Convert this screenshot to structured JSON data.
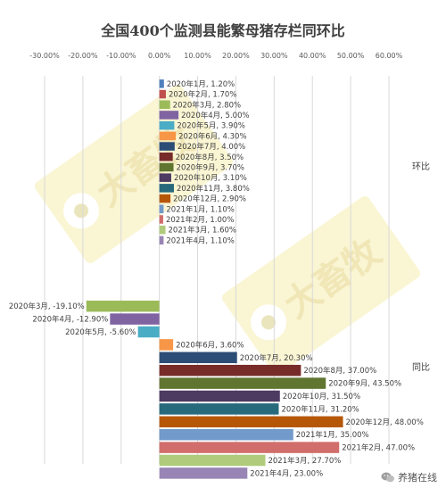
{
  "chart_data": {
    "type": "bar",
    "orientation": "horizontal",
    "title": "全国400个监测县能繁母猪存栏同环比",
    "xlim": [
      -0.3,
      0.6
    ],
    "xticks": [
      "-30.00%",
      "-20.00%",
      "-10.00%",
      "0.00%",
      "10.00%",
      "20.00%",
      "30.00%",
      "40.00%",
      "50.00%",
      "60.00%"
    ],
    "xtick_values": [
      -0.3,
      -0.2,
      -0.1,
      0,
      0.1,
      0.2,
      0.3,
      0.4,
      0.5,
      0.6
    ],
    "grid": true,
    "legend": "none",
    "groups": [
      {
        "name": "环比",
        "bars": [
          {
            "category": "2020年1月",
            "value": 0.012,
            "label": "2020年1月, 1.20%",
            "color": "#4f81bd"
          },
          {
            "category": "2020年2月",
            "value": 0.017,
            "label": "2020年2月, 1.70%",
            "color": "#c0504d"
          },
          {
            "category": "2020年3月",
            "value": 0.028,
            "label": "2020年3月, 2.80%",
            "color": "#9bbb59"
          },
          {
            "category": "2020年4月",
            "value": 0.05,
            "label": "2020年4月, 5.00%",
            "color": "#8064a2"
          },
          {
            "category": "2020年5月",
            "value": 0.039,
            "label": "2020年5月, 3.90%",
            "color": "#4bacc6"
          },
          {
            "category": "2020年6月",
            "value": 0.043,
            "label": "2020年6月, 4.30%",
            "color": "#f79646"
          },
          {
            "category": "2020年7月",
            "value": 0.04,
            "label": "2020年7月, 4.00%",
            "color": "#2c4d75"
          },
          {
            "category": "2020年8月",
            "value": 0.035,
            "label": "2020年8月, 3.50%",
            "color": "#772c2a"
          },
          {
            "category": "2020年9月",
            "value": 0.037,
            "label": "2020年9月, 3.70%",
            "color": "#5f7530"
          },
          {
            "category": "2020年10月",
            "value": 0.031,
            "label": "2020年10月, 3.10%",
            "color": "#4d3b62"
          },
          {
            "category": "2020年11月",
            "value": 0.038,
            "label": "2020年11月, 3.80%",
            "color": "#276a7c"
          },
          {
            "category": "2020年12月",
            "value": 0.029,
            "label": "2020年12月, 2.90%",
            "color": "#b65708"
          },
          {
            "category": "2021年1月",
            "value": 0.011,
            "label": "2021年1月, 1.10%",
            "color": "#729aca"
          },
          {
            "category": "2021年2月",
            "value": 0.01,
            "label": "2021年2月, 1.00%",
            "color": "#d16e6b"
          },
          {
            "category": "2021年3月",
            "value": 0.016,
            "label": "2021年3月, 1.60%",
            "color": "#afcb7b"
          },
          {
            "category": "2021年4月",
            "value": 0.011,
            "label": "2021年4月, 1.10%",
            "color": "#9985b5"
          }
        ]
      },
      {
        "name": "同比",
        "bars": [
          {
            "category": "2020年3月",
            "value": -0.191,
            "label": "2020年3月, -19.10%",
            "color": "#9bbb59"
          },
          {
            "category": "2020年4月",
            "value": -0.129,
            "label": "2020年4月, -12.90%",
            "color": "#8064a2"
          },
          {
            "category": "2020年5月",
            "value": -0.056,
            "label": "2020年5月, -5.60%",
            "color": "#4bacc6"
          },
          {
            "category": "2020年6月",
            "value": 0.036,
            "label": "2020年6月, 3.60%",
            "color": "#f79646"
          },
          {
            "category": "2020年7月",
            "value": 0.203,
            "label": "2020年7月, 20.30%",
            "color": "#2c4d75"
          },
          {
            "category": "2020年8月",
            "value": 0.37,
            "label": "2020年8月, 37.00%",
            "color": "#772c2a"
          },
          {
            "category": "2020年9月",
            "value": 0.435,
            "label": "2020年9月, 43.50%",
            "color": "#5f7530"
          },
          {
            "category": "2020年10月",
            "value": 0.315,
            "label": "2020年10月, 31.50%",
            "color": "#4d3b62"
          },
          {
            "category": "2020年11月",
            "value": 0.312,
            "label": "2020年11月, 31.20%",
            "color": "#276a7c"
          },
          {
            "category": "2020年12月",
            "value": 0.48,
            "label": "2020年12月, 48.00%",
            "color": "#b65708"
          },
          {
            "category": "2021年1月",
            "value": 0.35,
            "label": "2021年1月, 35.00%",
            "color": "#729aca"
          },
          {
            "category": "2021年2月",
            "value": 0.47,
            "label": "2021年2月, 47.00%",
            "color": "#d16e6b"
          },
          {
            "category": "2021年3月",
            "value": 0.277,
            "label": "2021年3月, 27.70%",
            "color": "#afcb7b"
          },
          {
            "category": "2021年4月",
            "value": 0.23,
            "label": "2021年4月, 23.00%",
            "color": "#9985b5"
          }
        ]
      }
    ]
  },
  "watermark": {
    "logo_text": "大畜牧",
    "site": "www.dxumu.com",
    "color": "#f3e9a2"
  },
  "footer": {
    "icon": "wechat-icon",
    "text": "养猪在线"
  }
}
